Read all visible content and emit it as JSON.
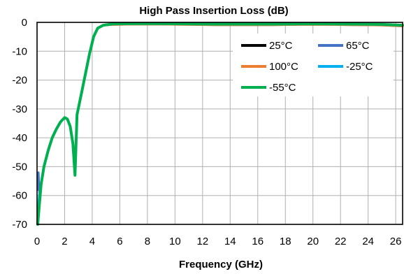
{
  "chart_data": {
    "type": "line",
    "title": "High Pass Insertion Loss (dB)",
    "xlabel": "Frequency (GHz)",
    "ylabel": "",
    "xlim": [
      0,
      26.5
    ],
    "ylim": [
      -70,
      0
    ],
    "xticks": [
      0,
      2,
      4,
      6,
      8,
      10,
      12,
      14,
      16,
      18,
      20,
      22,
      24,
      26
    ],
    "yticks": [
      0,
      -10,
      -20,
      -30,
      -40,
      -50,
      -60,
      -70
    ],
    "grid": true,
    "legend_position": "top-right",
    "series": [
      {
        "name": "25°C",
        "color": "#000000",
        "points": [
          [
            0.05,
            -70
          ],
          [
            0.15,
            -64
          ],
          [
            0.3,
            -56
          ],
          [
            0.5,
            -50
          ],
          [
            0.8,
            -44.5
          ],
          [
            1.1,
            -40
          ],
          [
            1.4,
            -37
          ],
          [
            1.7,
            -34.5
          ],
          [
            2.0,
            -33
          ],
          [
            2.2,
            -33.5
          ],
          [
            2.4,
            -36
          ],
          [
            2.6,
            -42
          ],
          [
            2.75,
            -53
          ],
          [
            2.9,
            -32
          ],
          [
            3.2,
            -25
          ],
          [
            3.5,
            -18
          ],
          [
            3.8,
            -11
          ],
          [
            4.1,
            -5
          ],
          [
            4.4,
            -2
          ],
          [
            4.8,
            -1
          ],
          [
            5.5,
            -0.7
          ],
          [
            7,
            -0.6
          ],
          [
            9,
            -0.6
          ],
          [
            11,
            -0.7
          ],
          [
            13,
            -0.8
          ],
          [
            15,
            -0.8
          ],
          [
            17,
            -0.8
          ],
          [
            19,
            -0.7
          ],
          [
            21,
            -0.7
          ],
          [
            23,
            -0.8
          ],
          [
            25,
            -0.9
          ],
          [
            26.5,
            -1.2
          ]
        ]
      },
      {
        "name": "65°C",
        "color": "#4472C4",
        "points": [
          [
            0.05,
            -58
          ],
          [
            0.1,
            -52
          ],
          [
            0.2,
            -62
          ],
          [
            0.3,
            -56
          ],
          [
            0.5,
            -50
          ],
          [
            0.8,
            -44.5
          ],
          [
            1.1,
            -40
          ],
          [
            1.4,
            -37
          ],
          [
            1.7,
            -34.5
          ],
          [
            2.0,
            -33
          ],
          [
            2.2,
            -33.5
          ],
          [
            2.4,
            -36
          ],
          [
            2.6,
            -42
          ],
          [
            2.75,
            -53
          ],
          [
            2.9,
            -32
          ],
          [
            3.2,
            -25
          ],
          [
            3.5,
            -18
          ],
          [
            3.8,
            -11
          ],
          [
            4.1,
            -5
          ],
          [
            4.4,
            -2
          ],
          [
            4.8,
            -1
          ],
          [
            5.5,
            -0.8
          ],
          [
            7,
            -0.7
          ],
          [
            9,
            -0.7
          ],
          [
            11,
            -0.8
          ],
          [
            13,
            -0.9
          ],
          [
            15,
            -0.9
          ],
          [
            17,
            -0.9
          ],
          [
            19,
            -0.8
          ],
          [
            21,
            -0.8
          ],
          [
            23,
            -0.9
          ],
          [
            25,
            -1.0
          ],
          [
            26.5,
            -1.3
          ]
        ]
      },
      {
        "name": "100°C",
        "color": "#ED7D31",
        "points": [
          [
            0.05,
            -70
          ],
          [
            0.15,
            -64
          ],
          [
            0.3,
            -56
          ],
          [
            0.5,
            -50
          ],
          [
            0.8,
            -44.5
          ],
          [
            1.1,
            -40
          ],
          [
            1.4,
            -37
          ],
          [
            1.7,
            -34.5
          ],
          [
            2.0,
            -33
          ],
          [
            2.2,
            -33.5
          ],
          [
            2.4,
            -36
          ],
          [
            2.6,
            -42
          ],
          [
            2.75,
            -53
          ],
          [
            2.9,
            -32
          ],
          [
            3.2,
            -25
          ],
          [
            3.5,
            -18
          ],
          [
            3.8,
            -11
          ],
          [
            4.1,
            -5
          ],
          [
            4.4,
            -2
          ],
          [
            4.8,
            -1
          ],
          [
            5.5,
            -0.8
          ],
          [
            7,
            -0.7
          ],
          [
            9,
            -0.7
          ],
          [
            11,
            -0.8
          ],
          [
            13,
            -0.9
          ],
          [
            15,
            -0.9
          ],
          [
            17,
            -0.9
          ],
          [
            19,
            -0.8
          ],
          [
            21,
            -0.8
          ],
          [
            23,
            -0.9
          ],
          [
            25,
            -1.0
          ],
          [
            26.5,
            -1.3
          ]
        ]
      },
      {
        "name": "-25°C",
        "color": "#00B0F0",
        "points": [
          [
            0.05,
            -66
          ],
          [
            0.15,
            -60
          ],
          [
            0.3,
            -56
          ],
          [
            0.5,
            -50
          ],
          [
            0.8,
            -44.5
          ],
          [
            1.1,
            -40
          ],
          [
            1.4,
            -37
          ],
          [
            1.7,
            -34.5
          ],
          [
            2.0,
            -33
          ],
          [
            2.2,
            -33.5
          ],
          [
            2.4,
            -36
          ],
          [
            2.6,
            -42
          ],
          [
            2.75,
            -53
          ],
          [
            2.9,
            -32
          ],
          [
            3.2,
            -25
          ],
          [
            3.5,
            -18
          ],
          [
            3.8,
            -11
          ],
          [
            4.1,
            -5
          ],
          [
            4.4,
            -2
          ],
          [
            4.8,
            -1
          ],
          [
            5.5,
            -0.6
          ],
          [
            7,
            -0.5
          ],
          [
            9,
            -0.5
          ],
          [
            11,
            -0.6
          ],
          [
            13,
            -0.7
          ],
          [
            15,
            -0.7
          ],
          [
            17,
            -0.7
          ],
          [
            19,
            -0.6
          ],
          [
            21,
            -0.6
          ],
          [
            23,
            -0.7
          ],
          [
            25,
            -0.8
          ],
          [
            26.5,
            -1.1
          ]
        ]
      },
      {
        "name": "-55°C",
        "color": "#00B050",
        "points": [
          [
            0.05,
            -70
          ],
          [
            0.15,
            -64
          ],
          [
            0.3,
            -56
          ],
          [
            0.5,
            -50
          ],
          [
            0.8,
            -44.5
          ],
          [
            1.1,
            -40
          ],
          [
            1.4,
            -37
          ],
          [
            1.7,
            -34.5
          ],
          [
            2.0,
            -33
          ],
          [
            2.2,
            -33.5
          ],
          [
            2.4,
            -36
          ],
          [
            2.6,
            -42
          ],
          [
            2.75,
            -53
          ],
          [
            2.9,
            -32
          ],
          [
            3.2,
            -25
          ],
          [
            3.5,
            -18
          ],
          [
            3.8,
            -11
          ],
          [
            4.1,
            -5
          ],
          [
            4.4,
            -2
          ],
          [
            4.8,
            -1
          ],
          [
            5.5,
            -0.5
          ],
          [
            7,
            -0.4
          ],
          [
            9,
            -0.4
          ],
          [
            11,
            -0.5
          ],
          [
            13,
            -0.6
          ],
          [
            15,
            -0.6
          ],
          [
            17,
            -0.6
          ],
          [
            19,
            -0.5
          ],
          [
            21,
            -0.5
          ],
          [
            23,
            -0.6
          ],
          [
            25,
            -0.7
          ],
          [
            26.5,
            -1.0
          ]
        ]
      }
    ]
  }
}
